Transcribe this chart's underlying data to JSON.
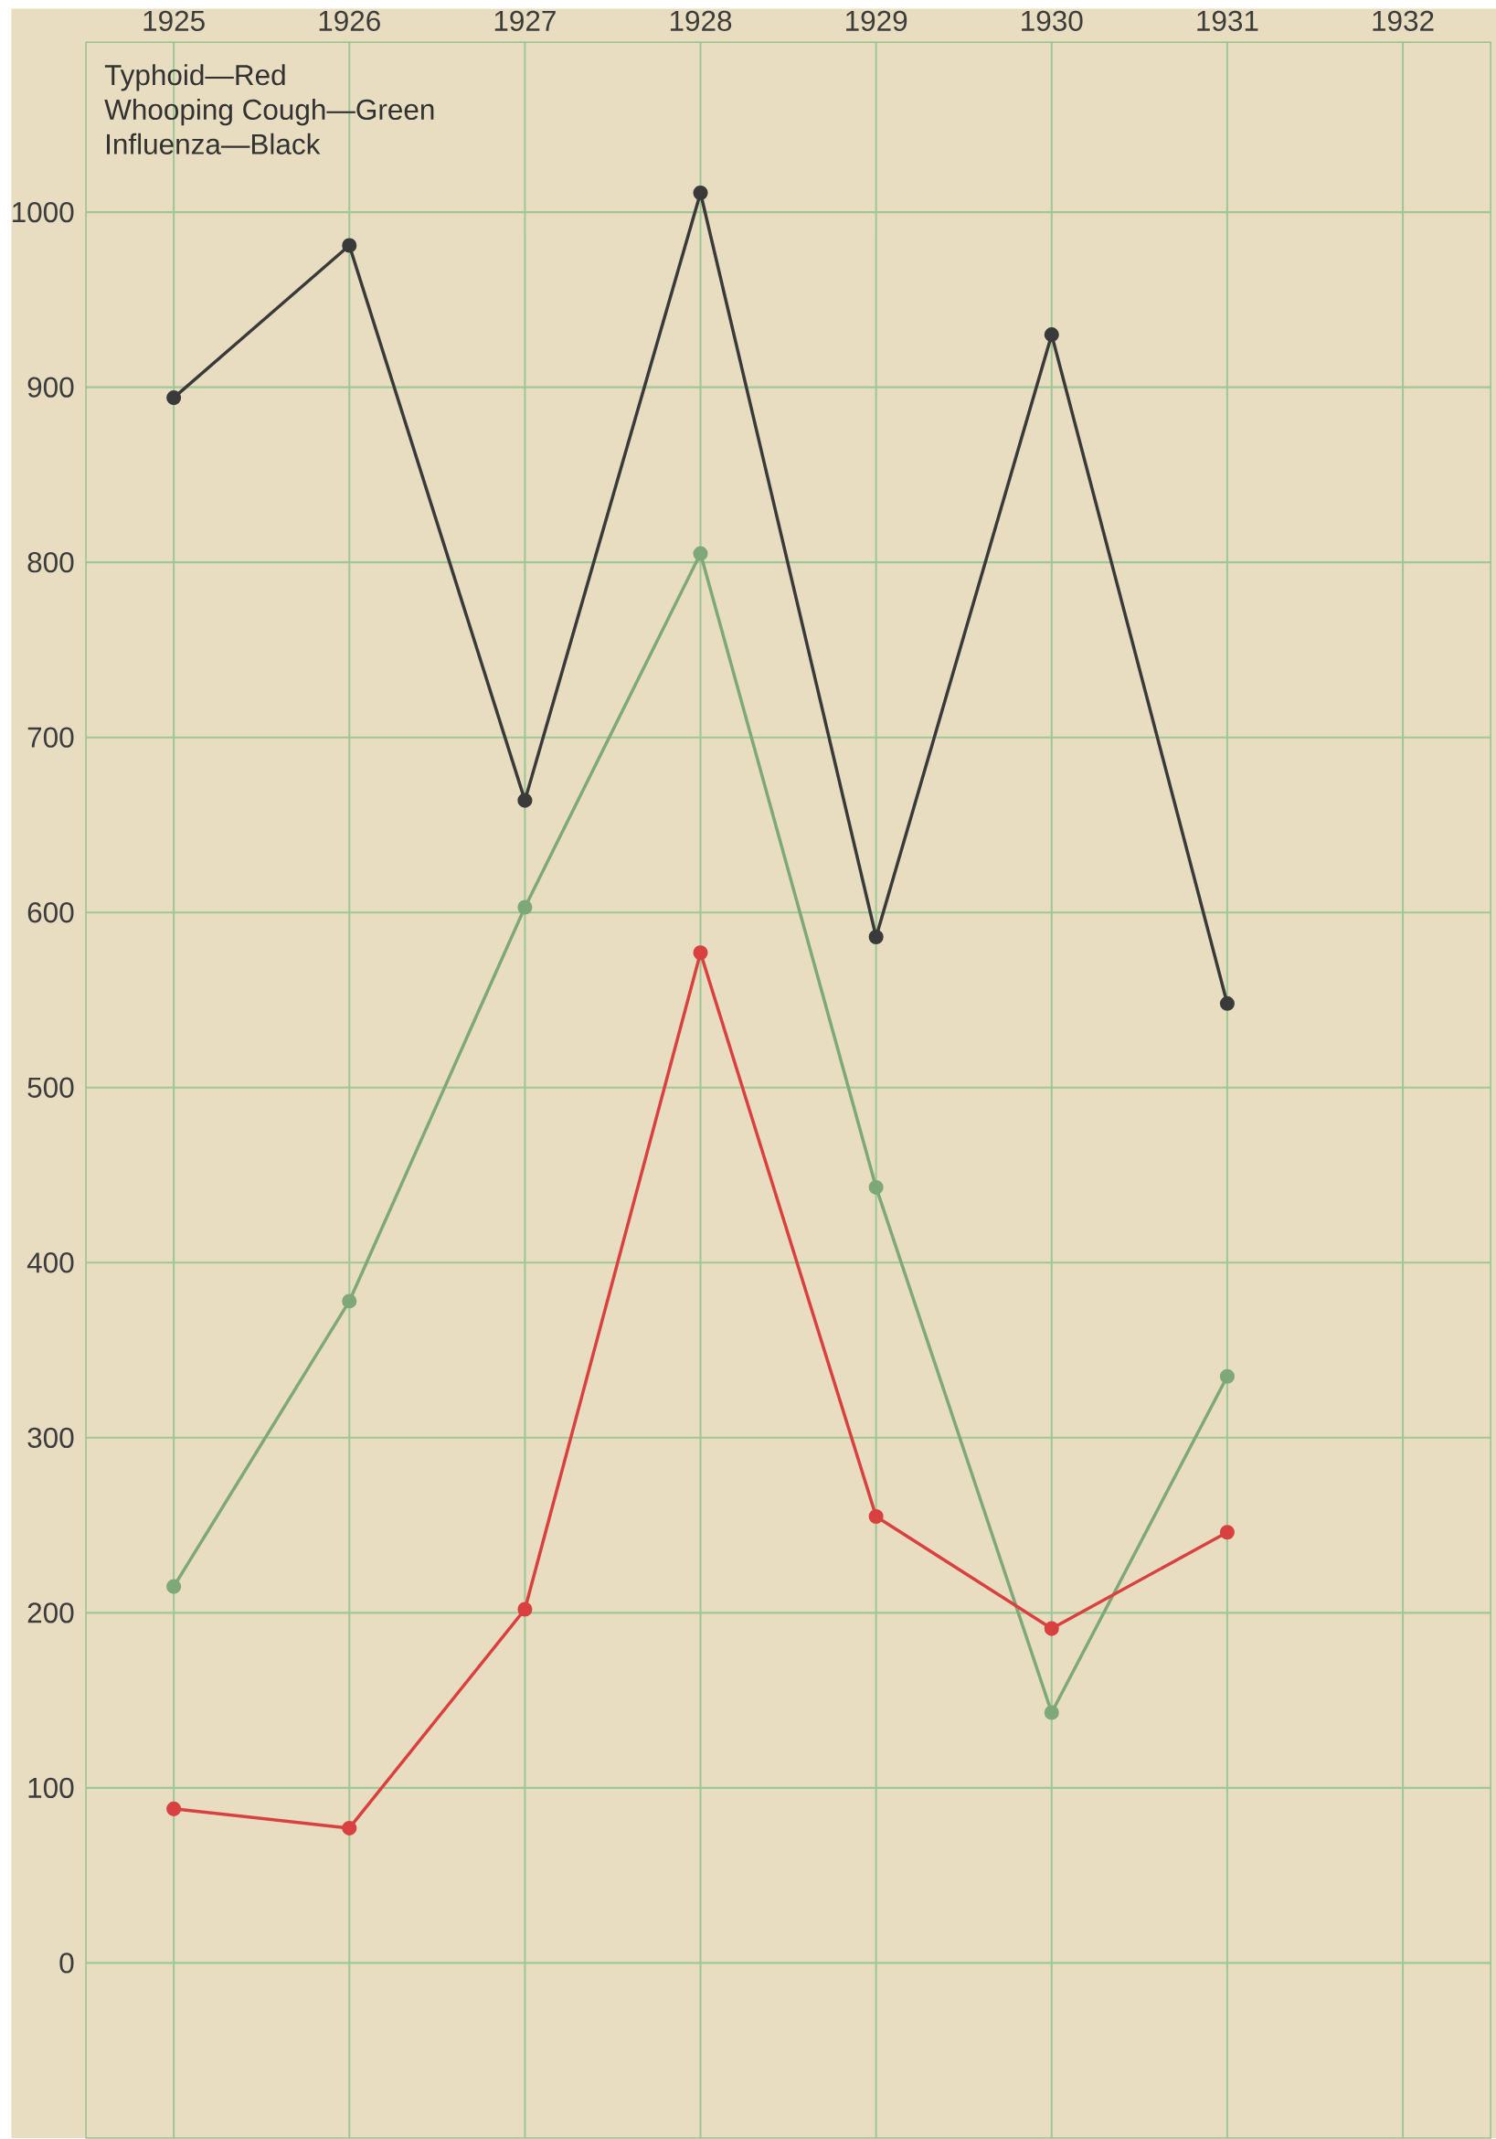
{
  "chart_data": {
    "type": "line",
    "annotations": [
      "Typhoid—Red",
      "Whooping Cough—Green",
      "Influenza—Black"
    ],
    "x": [
      1925,
      1926,
      1927,
      1928,
      1929,
      1930,
      1931
    ],
    "series": [
      {
        "color": "#3a3a3a",
        "values": [
          894,
          981,
          664,
          1011,
          586,
          930,
          548
        ]
      },
      {
        "color": "#7fa878",
        "values": [
          215,
          378,
          603,
          805,
          443,
          143,
          335
        ]
      },
      {
        "color": "#d94040",
        "values": [
          88,
          77,
          202,
          577,
          255,
          191,
          246
        ]
      }
    ],
    "xlim": [
      1924.5,
      1932.5
    ],
    "xticks": [
      1925,
      1926,
      1927,
      1928,
      1929,
      1930,
      1931,
      1932
    ],
    "ylim": [
      -100,
      1097
    ],
    "yticks": [
      0,
      100,
      200,
      300,
      400,
      500,
      600,
      700,
      800,
      900,
      1000
    ],
    "grid": true,
    "marker": "circle",
    "line_style": "solid"
  }
}
